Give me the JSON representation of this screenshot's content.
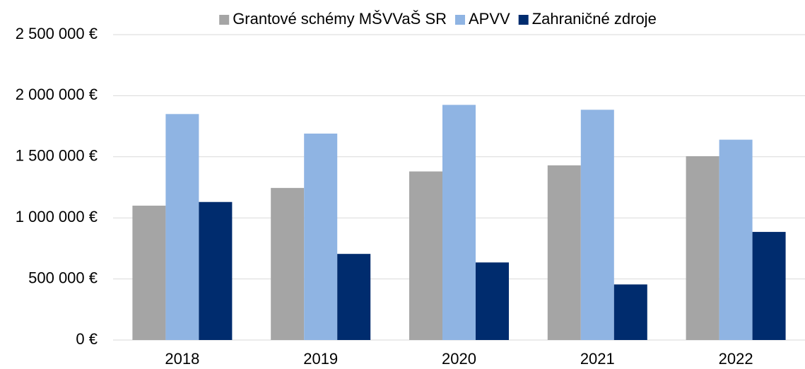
{
  "chart_data": {
    "type": "bar",
    "categories": [
      "2018",
      "2019",
      "2020",
      "2021",
      "2022"
    ],
    "series": [
      {
        "name": "Grantové schémy MŠVVaŠ SR",
        "color": "#a5a5a5",
        "values": [
          1100000,
          1245000,
          1380000,
          1430000,
          1505000
        ]
      },
      {
        "name": "APVV",
        "color": "#8fb4e3",
        "values": [
          1850000,
          1690000,
          1925000,
          1885000,
          1640000
        ]
      },
      {
        "name": "Zahraničné zdroje",
        "color": "#002c6e",
        "values": [
          1130000,
          705000,
          635000,
          455000,
          885000
        ]
      }
    ],
    "ylim": [
      0,
      2500000
    ],
    "yticks": [
      {
        "value": 0,
        "label": "0 €"
      },
      {
        "value": 500000,
        "label": "500 000 €"
      },
      {
        "value": 1000000,
        "label": "1 000 000 €"
      },
      {
        "value": 1500000,
        "label": "1 500 000 €"
      },
      {
        "value": 2000000,
        "label": "2 000 000 €"
      },
      {
        "value": 2500000,
        "label": "2 500 000 €"
      }
    ],
    "grid": true,
    "legend": "top"
  }
}
